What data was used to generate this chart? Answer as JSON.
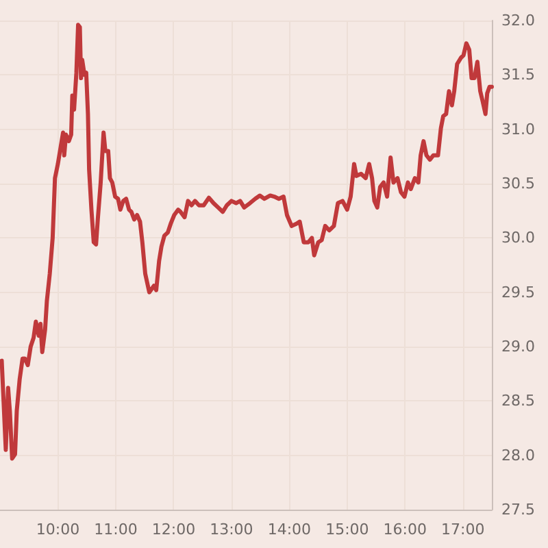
{
  "chart_data": {
    "type": "line",
    "x": [
      9.03,
      9.1,
      9.14,
      9.17,
      9.21,
      9.26,
      9.29,
      9.34,
      9.39,
      9.43,
      9.48,
      9.53,
      9.58,
      9.62,
      9.67,
      9.7,
      9.73,
      9.78,
      9.81,
      9.86,
      9.91,
      9.95,
      10.0,
      10.05,
      10.09,
      10.11,
      10.14,
      10.19,
      10.23,
      10.25,
      10.28,
      10.32,
      10.35,
      10.38,
      10.4,
      10.42,
      10.46,
      10.49,
      10.52,
      10.54,
      10.58,
      10.62,
      10.66,
      10.69,
      10.74,
      10.79,
      10.82,
      10.87,
      10.9,
      10.94,
      10.99,
      11.04,
      11.08,
      11.13,
      11.18,
      11.23,
      11.27,
      11.32,
      11.37,
      11.42,
      11.46,
      11.51,
      11.58,
      11.66,
      11.7,
      11.75,
      11.79,
      11.84,
      11.9,
      11.95,
      12.01,
      12.08,
      12.12,
      12.19,
      12.25,
      12.31,
      12.37,
      12.44,
      12.52,
      12.61,
      12.69,
      12.77,
      12.85,
      12.92,
      13.0,
      13.08,
      13.15,
      13.22,
      13.32,
      13.41,
      13.49,
      13.57,
      13.67,
      13.74,
      13.82,
      13.9,
      13.96,
      14.04,
      14.12,
      14.18,
      14.25,
      14.33,
      14.39,
      14.43,
      14.5,
      14.56,
      14.62,
      14.69,
      14.77,
      14.84,
      14.92,
      15.0,
      15.06,
      15.12,
      15.16,
      15.24,
      15.32,
      15.38,
      15.43,
      15.47,
      15.52,
      15.57,
      15.63,
      15.69,
      15.75,
      15.8,
      15.87,
      15.93,
      15.99,
      16.05,
      16.1,
      16.17,
      16.23,
      16.27,
      16.32,
      16.37,
      16.43,
      16.49,
      16.57,
      16.62,
      16.66,
      16.71,
      16.76,
      16.81,
      16.85,
      16.9,
      16.97,
      17.01,
      17.06,
      17.11,
      17.15,
      17.2,
      17.25,
      17.3,
      17.34,
      17.39,
      17.42,
      17.46,
      17.5
    ],
    "series": [
      {
        "color": "#c0393b",
        "values": [
          28.87,
          28.05,
          28.62,
          28.41,
          27.97,
          28.01,
          28.41,
          28.7,
          28.89,
          28.89,
          28.83,
          29.0,
          29.08,
          29.23,
          29.1,
          29.21,
          28.95,
          29.16,
          29.42,
          29.67,
          30.0,
          30.55,
          30.68,
          30.84,
          30.97,
          30.76,
          30.95,
          30.89,
          30.95,
          31.31,
          31.18,
          31.52,
          31.96,
          31.94,
          31.47,
          31.64,
          31.5,
          31.52,
          31.14,
          30.63,
          30.26,
          29.96,
          29.94,
          30.17,
          30.51,
          30.97,
          30.8,
          30.8,
          30.55,
          30.51,
          30.38,
          30.36,
          30.26,
          30.34,
          30.36,
          30.26,
          30.24,
          30.17,
          30.21,
          30.15,
          29.96,
          29.67,
          29.5,
          29.56,
          29.52,
          29.79,
          29.92,
          30.02,
          30.05,
          30.13,
          30.21,
          30.26,
          30.24,
          30.19,
          30.34,
          30.3,
          30.34,
          30.3,
          30.3,
          30.37,
          30.32,
          30.28,
          30.24,
          30.3,
          30.34,
          30.32,
          30.34,
          30.28,
          30.32,
          30.36,
          30.39,
          30.36,
          30.39,
          30.38,
          30.36,
          30.38,
          30.21,
          30.11,
          30.13,
          30.15,
          29.96,
          29.96,
          30.0,
          29.84,
          29.96,
          29.98,
          30.11,
          30.07,
          30.11,
          30.32,
          30.34,
          30.26,
          30.38,
          30.68,
          30.57,
          30.59,
          30.55,
          30.68,
          30.55,
          30.34,
          30.28,
          30.47,
          30.51,
          30.38,
          30.74,
          30.51,
          30.55,
          30.42,
          30.38,
          30.51,
          30.45,
          30.55,
          30.51,
          30.76,
          30.89,
          30.76,
          30.72,
          30.76,
          30.76,
          31.01,
          31.12,
          31.14,
          31.35,
          31.22,
          31.35,
          31.6,
          31.66,
          31.68,
          31.79,
          31.73,
          31.47,
          31.47,
          31.62,
          31.35,
          31.26,
          31.14,
          31.33,
          31.39,
          31.39
        ]
      }
    ],
    "xlim": [
      9,
      17.5
    ],
    "xticks": [
      {
        "value": 10,
        "label": "10:00"
      },
      {
        "value": 11,
        "label": "11:00"
      },
      {
        "value": 12,
        "label": "12:00"
      },
      {
        "value": 13,
        "label": "13:00"
      },
      {
        "value": 14,
        "label": "14:00"
      },
      {
        "value": 15,
        "label": "15:00"
      },
      {
        "value": 16,
        "label": "16:00"
      },
      {
        "value": 17,
        "label": "17:00"
      }
    ],
    "ylim": [
      27.5,
      32
    ],
    "yticks": [
      27.5,
      {
        "value": 28,
        "label": "28.0"
      },
      28.5,
      {
        "value": 29,
        "label": "29.0"
      },
      29.5,
      {
        "value": 30,
        "label": "30.0"
      },
      30.5,
      {
        "value": 31,
        "label": "31.0"
      },
      31.5,
      {
        "value": 32,
        "label": "32.0"
      }
    ],
    "grid": true,
    "marker": "none",
    "line_style": "solid"
  }
}
